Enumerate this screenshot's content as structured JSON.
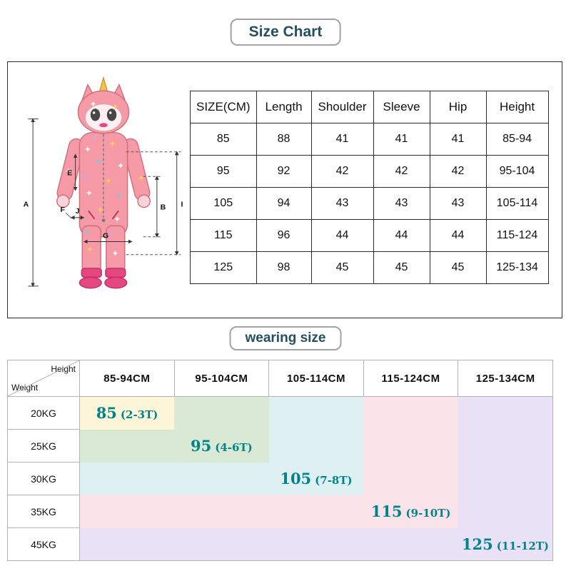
{
  "title": "Size Chart",
  "wearing_title": "wearing size",
  "colors": {
    "accent": "#00838a",
    "title_text": "#234f5e"
  },
  "size_table": {
    "headers": [
      "SIZE(CM)",
      "Length",
      "Shoulder",
      "Sleeve",
      "Hip",
      "Height"
    ],
    "rows": [
      [
        "85",
        "88",
        "41",
        "41",
        "41",
        "85-94"
      ],
      [
        "95",
        "92",
        "42",
        "42",
        "42",
        "95-104"
      ],
      [
        "105",
        "94",
        "43",
        "43",
        "43",
        "105-114"
      ],
      [
        "115",
        "96",
        "44",
        "44",
        "44",
        "115-124"
      ],
      [
        "125",
        "98",
        "45",
        "45",
        "45",
        "125-134"
      ]
    ]
  },
  "diagram": {
    "labels": {
      "a": "A",
      "b": "B",
      "e": "E",
      "f": "F",
      "g": "G",
      "i": "I",
      "j": "J"
    }
  },
  "wearing_table": {
    "corner": {
      "top": "Height",
      "bottom": "Weight"
    },
    "columns": [
      "85-94CM",
      "95-104CM",
      "105-114CM",
      "115-124CM",
      "125-134CM"
    ],
    "rows": [
      "20KG",
      "25KG",
      "30KG",
      "35KG",
      "45KG"
    ],
    "sizes": [
      {
        "label": "85",
        "age": "(2-3T)",
        "color": "#fdf5d7"
      },
      {
        "label": "95",
        "age": "(4-6T)",
        "color": "#d9e9d3"
      },
      {
        "label": "105",
        "age": "(7-8T)",
        "color": "#def0f2"
      },
      {
        "label": "115",
        "age": "(9-10T)",
        "color": "#fbe4e9"
      },
      {
        "label": "125",
        "age": "(11-12T)",
        "color": "#e9e1f5"
      }
    ]
  }
}
